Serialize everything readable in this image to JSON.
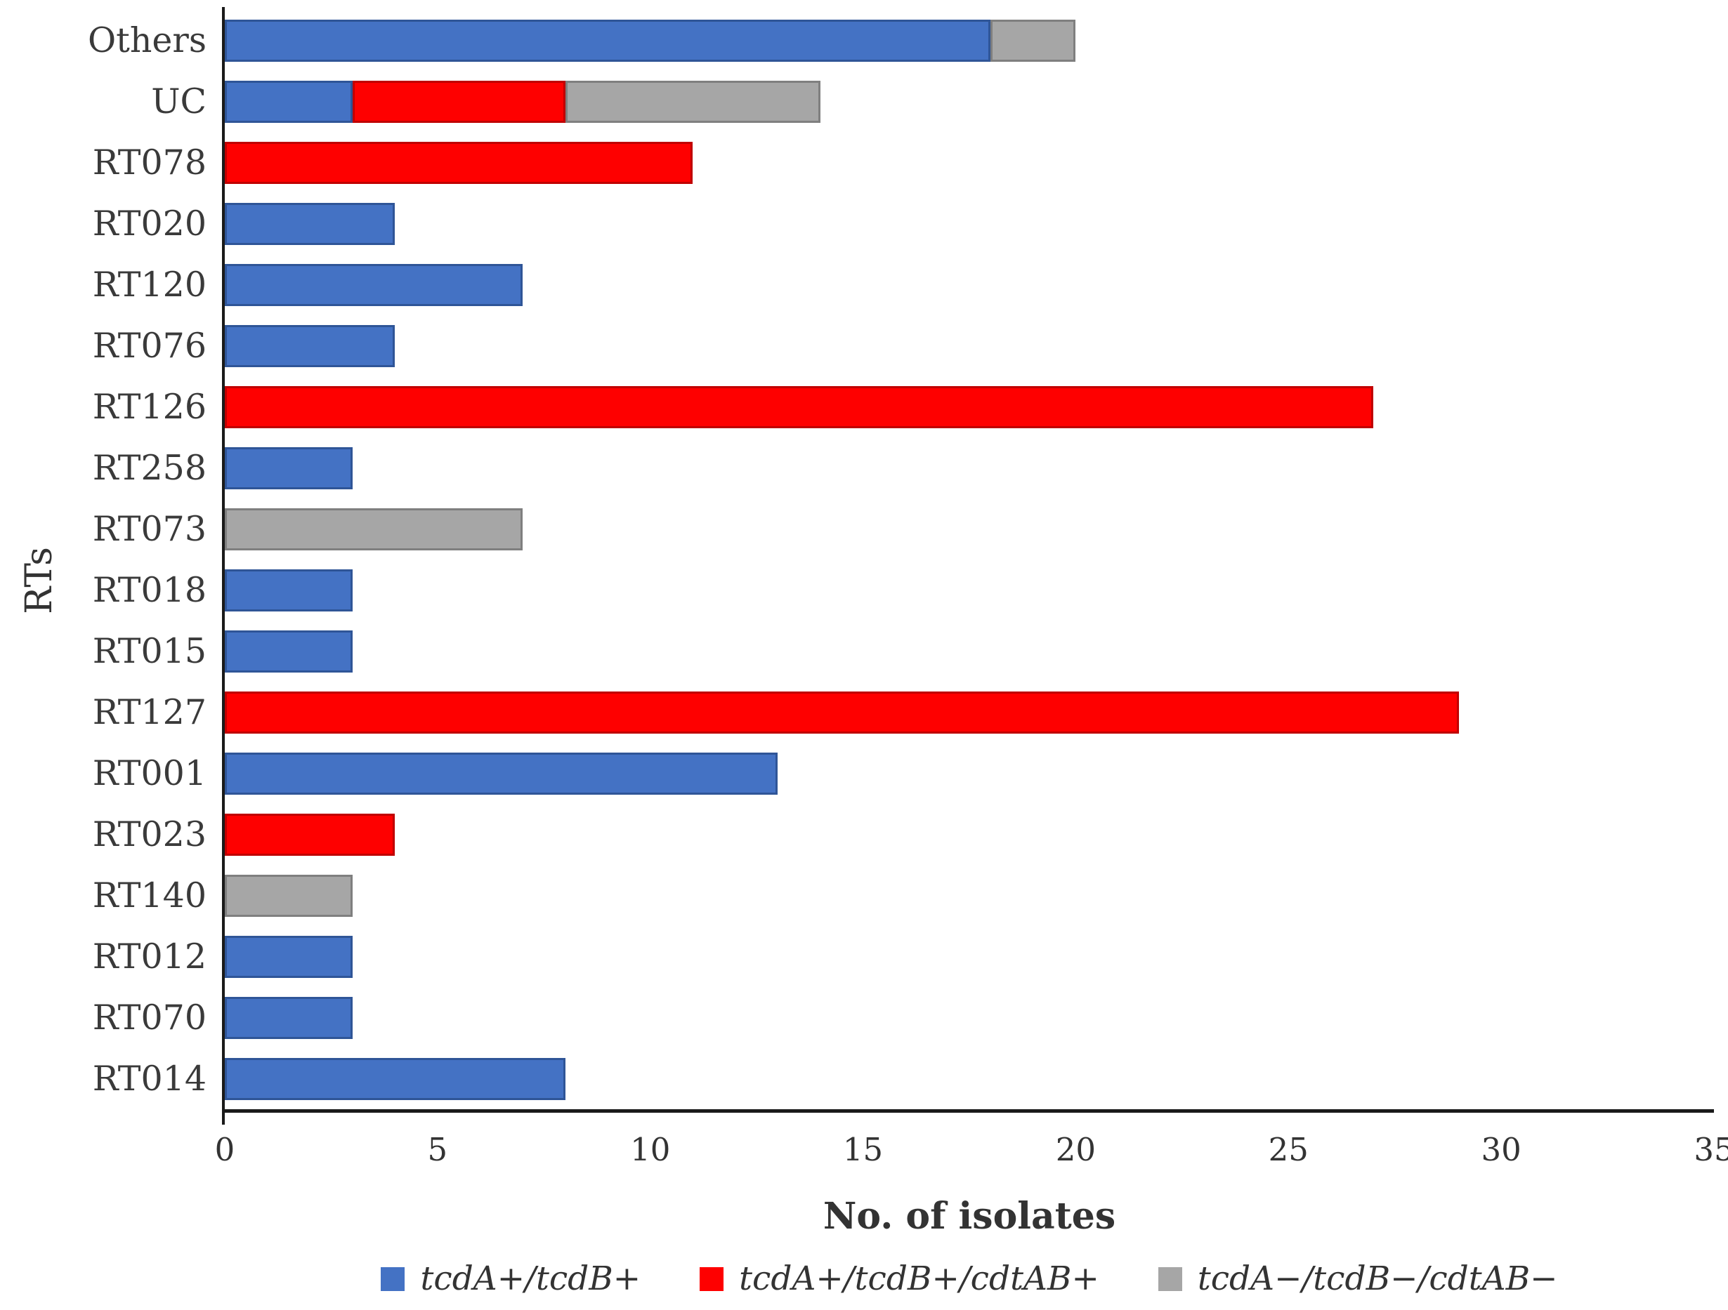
{
  "figure": {
    "background": "#ffffff",
    "text_color": "#333333"
  },
  "chart_data": {
    "type": "bar",
    "orientation": "horizontal",
    "stacked": true,
    "grid": false,
    "title": "",
    "xlabel": "No. of isolates",
    "ylabel": "RTs",
    "xlim": [
      0,
      35
    ],
    "x_ticks": [
      0,
      5,
      10,
      15,
      20,
      25,
      30,
      35
    ],
    "legend_position": "bottom",
    "categories": [
      "Others",
      "UC",
      "RT078",
      "RT020",
      "RT120",
      "RT076",
      "RT126",
      "RT258",
      "RT073",
      "RT018",
      "RT015",
      "RT127",
      "RT001",
      "RT023",
      "RT140",
      "RT012",
      "RT070",
      "RT014"
    ],
    "series": [
      {
        "name": "tcdA+/tcdB+",
        "color": "#4472C4",
        "border_color": "#2F5597",
        "values": [
          18,
          3,
          0,
          4,
          7,
          4,
          0,
          3,
          0,
          3,
          3,
          0,
          13,
          0,
          0,
          3,
          3,
          8
        ]
      },
      {
        "name": "tcdA+/tcdB+/cdtAB+",
        "color": "#FE0000",
        "border_color": "#C00000",
        "values": [
          0,
          5,
          11,
          0,
          0,
          0,
          27,
          0,
          0,
          0,
          0,
          29,
          0,
          4,
          0,
          0,
          0,
          0
        ]
      },
      {
        "name": "tcdA−/tcdB−/cdtAB−",
        "color": "#A6A6A6",
        "border_color": "#7F7F7F",
        "values": [
          2,
          6,
          0,
          0,
          0,
          0,
          0,
          0,
          7,
          0,
          0,
          0,
          0,
          0,
          3,
          0,
          0,
          0
        ]
      }
    ]
  }
}
